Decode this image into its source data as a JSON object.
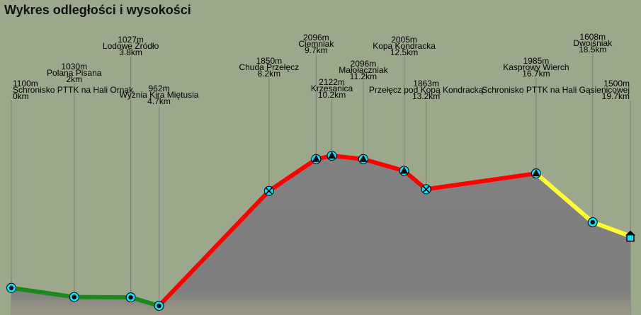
{
  "title": "Wykres odległości i wysokości",
  "colors": {
    "background": "#9ca88b",
    "area": "#808080",
    "green": "#1a8a1a",
    "red": "#ff0000",
    "yellow": "#ffff33",
    "marker": "#00e5ff"
  },
  "chart_data": {
    "type": "area",
    "title": "Wykres odległości i wysokości",
    "xlabel": "",
    "ylabel": "",
    "points": [
      {
        "name": "Schronisko PTTK na Hali Ornak",
        "elev_label": "1100m",
        "dist_label": "0km",
        "x": 0,
        "y": 1100,
        "marker": "circle",
        "segment_color": "green"
      },
      {
        "name": "Polana Pisana",
        "elev_label": "1030m",
        "dist_label": "2km",
        "x": 2,
        "y": 1030,
        "marker": "circle",
        "segment_color": "green"
      },
      {
        "name": "Lodowe Źródło",
        "elev_label": "1027m",
        "dist_label": "3.8km",
        "x": 3.8,
        "y": 1027,
        "marker": "circle",
        "segment_color": "green"
      },
      {
        "name": "Wyżnia Kira Miętusia",
        "elev_label": "962m",
        "dist_label": "4.7km",
        "x": 4.7,
        "y": 962,
        "marker": "circle",
        "segment_color": "red"
      },
      {
        "name": "Chuda Przełęcz",
        "elev_label": "1850m",
        "dist_label": "8.2km",
        "x": 8.2,
        "y": 1850,
        "marker": "cross",
        "segment_color": "red"
      },
      {
        "name": "Ciemniak",
        "elev_label": "2096m",
        "dist_label": "9.7km",
        "x": 9.7,
        "y": 2096,
        "marker": "triangle",
        "segment_color": "red"
      },
      {
        "name": "Krzesanica",
        "elev_label": "2122m",
        "dist_label": "10.2km",
        "x": 10.2,
        "y": 2122,
        "marker": "triangle",
        "segment_color": "red"
      },
      {
        "name": "Małołączniak",
        "elev_label": "2096m",
        "dist_label": "11.2km",
        "x": 11.2,
        "y": 2096,
        "marker": "triangle",
        "segment_color": "red"
      },
      {
        "name": "Kopa Kondracka",
        "elev_label": "2005m",
        "dist_label": "12.5km",
        "x": 12.5,
        "y": 2005,
        "marker": "triangle",
        "segment_color": "red"
      },
      {
        "name": "Przełęcz pod Kopą Kondracką",
        "elev_label": "1863m",
        "dist_label": "13.2km",
        "x": 13.2,
        "y": 1863,
        "marker": "cross",
        "segment_color": "red"
      },
      {
        "name": "Kasprowy Wierch",
        "elev_label": "1985m",
        "dist_label": "16.7km",
        "x": 16.7,
        "y": 1985,
        "marker": "triangle",
        "segment_color": "yellow"
      },
      {
        "name": "Dwoiśniak",
        "elev_label": "1608m",
        "dist_label": "18.5km",
        "x": 18.5,
        "y": 1608,
        "marker": "circle",
        "segment_color": "yellow"
      },
      {
        "name": "Schronisko PTTK na Hali Gąsienicowej",
        "elev_label": "1500m",
        "dist_label": "19.7km",
        "x": 19.7,
        "y": 1500,
        "marker": "hut",
        "segment_color": null
      }
    ]
  }
}
